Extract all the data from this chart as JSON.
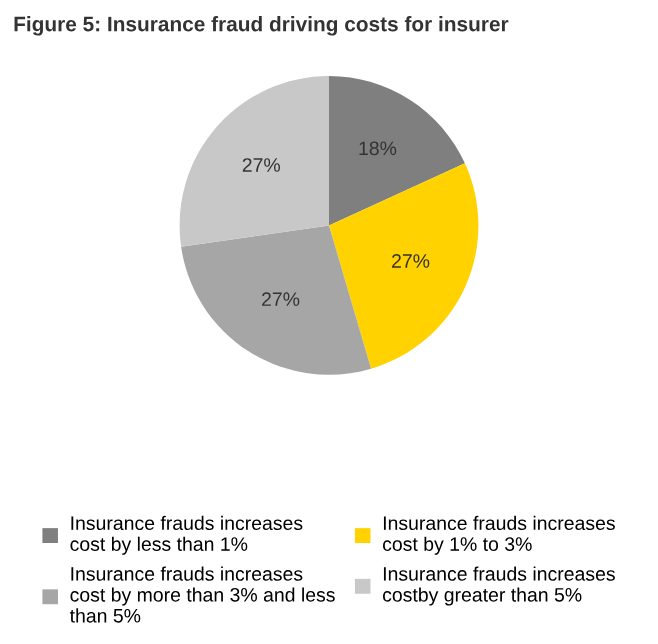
{
  "chart_data": {
    "type": "pie",
    "title": "Figure 5: Insurance fraud driving costs for insurer",
    "categories": [
      "Insurance frauds increases\ncost by less than 1%",
      "Insurance frauds increases\ncost by 1% to 3%",
      "Insurance frauds increases\ncost by more than 3% and less\nthan 5%",
      "Insurance frauds increases\ncostby greater than 5%"
    ],
    "values": [
      18,
      27,
      27,
      27
    ],
    "value_labels": [
      "18%",
      "27%",
      "27%",
      "27%"
    ],
    "colors": [
      "#7f7f7f",
      "#ffd200",
      "#a6a6a6",
      "#c8c8c8"
    ],
    "legend": "bottom"
  }
}
